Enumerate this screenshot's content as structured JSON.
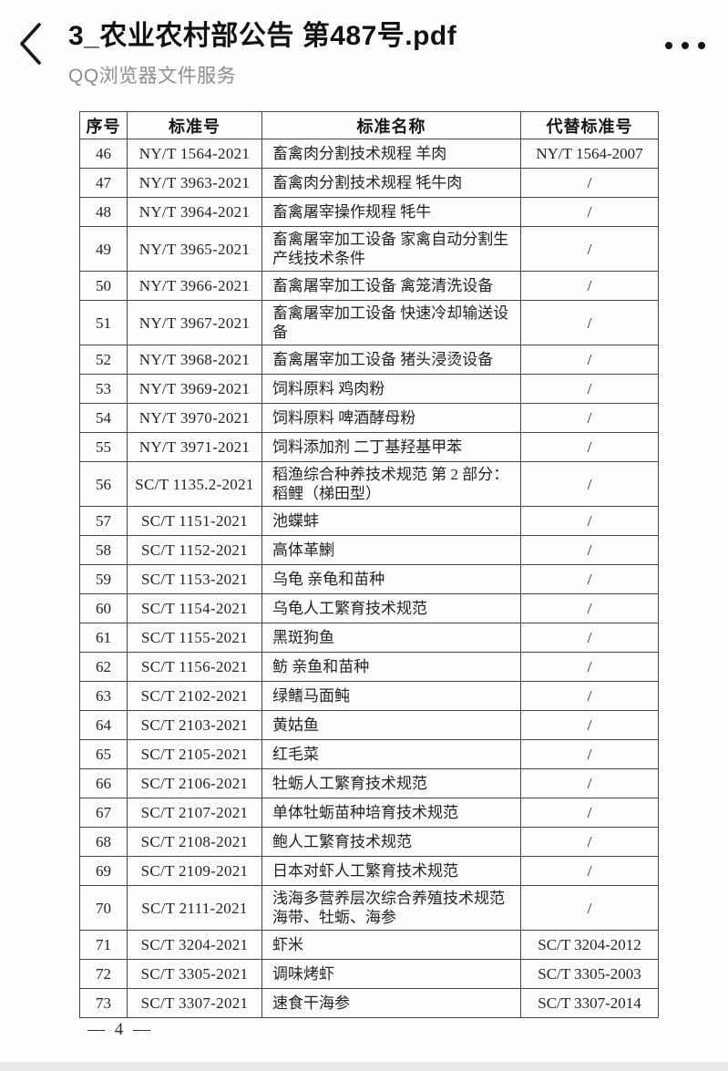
{
  "header": {
    "title": "3_农业农村部公告 第487号.pdf",
    "subtitle": "QQ浏览器文件服务"
  },
  "table": {
    "columns": [
      "序号",
      "标准号",
      "标准名称",
      "代替标准号"
    ],
    "rows": [
      {
        "no": "46",
        "std": "NY/T 1564-2021",
        "name": "畜禽肉分割技术规程 羊肉",
        "replaced": "NY/T 1564-2007"
      },
      {
        "no": "47",
        "std": "NY/T 3963-2021",
        "name": "畜禽肉分割技术规程 牦牛肉",
        "replaced": "/"
      },
      {
        "no": "48",
        "std": "NY/T 3964-2021",
        "name": "畜禽屠宰操作规程 牦牛",
        "replaced": "/"
      },
      {
        "no": "49",
        "std": "NY/T 3965-2021",
        "name": "畜禽屠宰加工设备 家禽自动分割生产线技术条件",
        "replaced": "/"
      },
      {
        "no": "50",
        "std": "NY/T 3966-2021",
        "name": "畜禽屠宰加工设备 禽笼清洗设备",
        "replaced": "/"
      },
      {
        "no": "51",
        "std": "NY/T 3967-2021",
        "name": "畜禽屠宰加工设备 快速冷却输送设备",
        "replaced": "/"
      },
      {
        "no": "52",
        "std": "NY/T 3968-2021",
        "name": "畜禽屠宰加工设备 猪头浸烫设备",
        "replaced": "/"
      },
      {
        "no": "53",
        "std": "NY/T 3969-2021",
        "name": "饲料原料 鸡肉粉",
        "replaced": "/"
      },
      {
        "no": "54",
        "std": "NY/T 3970-2021",
        "name": "饲料原料 啤酒酵母粉",
        "replaced": "/"
      },
      {
        "no": "55",
        "std": "NY/T 3971-2021",
        "name": "饲料添加剂 二丁基羟基甲苯",
        "replaced": "/"
      },
      {
        "no": "56",
        "std": "SC/T 1135.2-2021",
        "name": "稻渔综合种养技术规范 第 2 部分：稻鲤（梯田型）",
        "replaced": "/"
      },
      {
        "no": "57",
        "std": "SC/T 1151-2021",
        "name": "池蝶蚌",
        "replaced": "/"
      },
      {
        "no": "58",
        "std": "SC/T 1152-2021",
        "name": "高体革鯻",
        "replaced": "/"
      },
      {
        "no": "59",
        "std": "SC/T 1153-2021",
        "name": "乌龟 亲龟和苗种",
        "replaced": "/"
      },
      {
        "no": "60",
        "std": "SC/T 1154-2021",
        "name": "乌龟人工繁育技术规范",
        "replaced": "/"
      },
      {
        "no": "61",
        "std": "SC/T 1155-2021",
        "name": "黑斑狗鱼",
        "replaced": "/"
      },
      {
        "no": "62",
        "std": "SC/T 1156-2021",
        "name": "鲂 亲鱼和苗种",
        "replaced": "/"
      },
      {
        "no": "63",
        "std": "SC/T 2102-2021",
        "name": "绿鳍马面鲀",
        "replaced": "/"
      },
      {
        "no": "64",
        "std": "SC/T 2103-2021",
        "name": "黄姑鱼",
        "replaced": "/"
      },
      {
        "no": "65",
        "std": "SC/T 2105-2021",
        "name": "红毛菜",
        "replaced": "/"
      },
      {
        "no": "66",
        "std": "SC/T 2106-2021",
        "name": "牡蛎人工繁育技术规范",
        "replaced": "/"
      },
      {
        "no": "67",
        "std": "SC/T 2107-2021",
        "name": "单体牡蛎苗种培育技术规范",
        "replaced": "/"
      },
      {
        "no": "68",
        "std": "SC/T 2108-2021",
        "name": "鲍人工繁育技术规范",
        "replaced": "/"
      },
      {
        "no": "69",
        "std": "SC/T 2109-2021",
        "name": "日本对虾人工繁育技术规范",
        "replaced": "/"
      },
      {
        "no": "70",
        "std": "SC/T 2111-2021",
        "name": "浅海多营养层次综合养殖技术规范 海带、牡蛎、海参",
        "replaced": "/"
      },
      {
        "no": "71",
        "std": "SC/T 3204-2021",
        "name": "虾米",
        "replaced": "SC/T 3204-2012"
      },
      {
        "no": "72",
        "std": "SC/T 3305-2021",
        "name": "调味烤虾",
        "replaced": "SC/T 3305-2003"
      },
      {
        "no": "73",
        "std": "SC/T 3307-2021",
        "name": "速食干海参",
        "replaced": "SC/T 3307-2014"
      }
    ]
  },
  "footer": {
    "page_label": "— 4 —"
  }
}
